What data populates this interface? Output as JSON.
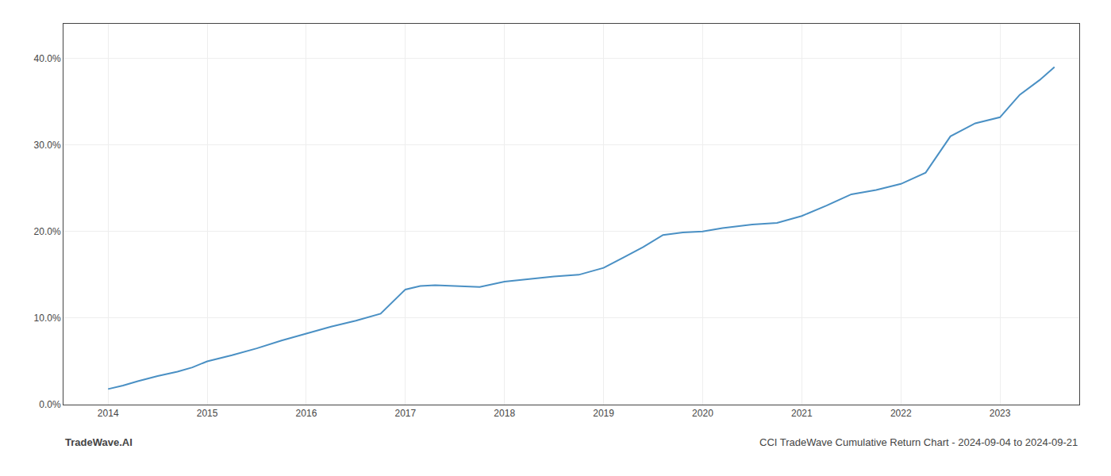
{
  "chart_data": {
    "type": "line",
    "annotations": [
      "TradeWave.AI",
      "CCI TradeWave Cumulative Return Chart - 2024-09-04 to 2024-09-21"
    ],
    "x": [
      2014.0,
      2014.15,
      2014.3,
      2014.5,
      2014.7,
      2014.85,
      2015.0,
      2015.25,
      2015.5,
      2015.75,
      2016.0,
      2016.25,
      2016.5,
      2016.75,
      2017.0,
      2017.15,
      2017.3,
      2017.5,
      2017.75,
      2018.0,
      2018.25,
      2018.5,
      2018.75,
      2019.0,
      2019.2,
      2019.4,
      2019.6,
      2019.8,
      2020.0,
      2020.2,
      2020.5,
      2020.75,
      2021.0,
      2021.25,
      2021.5,
      2021.75,
      2022.0,
      2022.25,
      2022.5,
      2022.75,
      2023.0,
      2023.2,
      2023.4,
      2023.55
    ],
    "values": [
      0.018,
      0.022,
      0.027,
      0.033,
      0.038,
      0.043,
      0.05,
      0.057,
      0.065,
      0.074,
      0.082,
      0.09,
      0.097,
      0.105,
      0.133,
      0.137,
      0.138,
      0.137,
      0.136,
      0.142,
      0.145,
      0.148,
      0.15,
      0.158,
      0.17,
      0.182,
      0.196,
      0.199,
      0.2,
      0.204,
      0.208,
      0.21,
      0.218,
      0.23,
      0.243,
      0.248,
      0.255,
      0.268,
      0.31,
      0.325,
      0.332,
      0.358,
      0.375,
      0.39
    ],
    "color": "#4a90c4",
    "xlim": [
      2013.55,
      2023.8
    ],
    "xticks": [
      2014,
      2015,
      2016,
      2017,
      2018,
      2019,
      2020,
      2021,
      2022,
      2023
    ],
    "ylim": [
      0.0,
      0.44
    ],
    "yticks": [
      {
        "value": 0.0,
        "label": "0.0%"
      },
      {
        "value": 0.1,
        "label": "10.0%"
      },
      {
        "value": 0.2,
        "label": "20.0%"
      },
      {
        "value": 0.3,
        "label": "30.0%"
      },
      {
        "value": 0.4,
        "label": "40.0%"
      }
    ],
    "grid": true
  }
}
